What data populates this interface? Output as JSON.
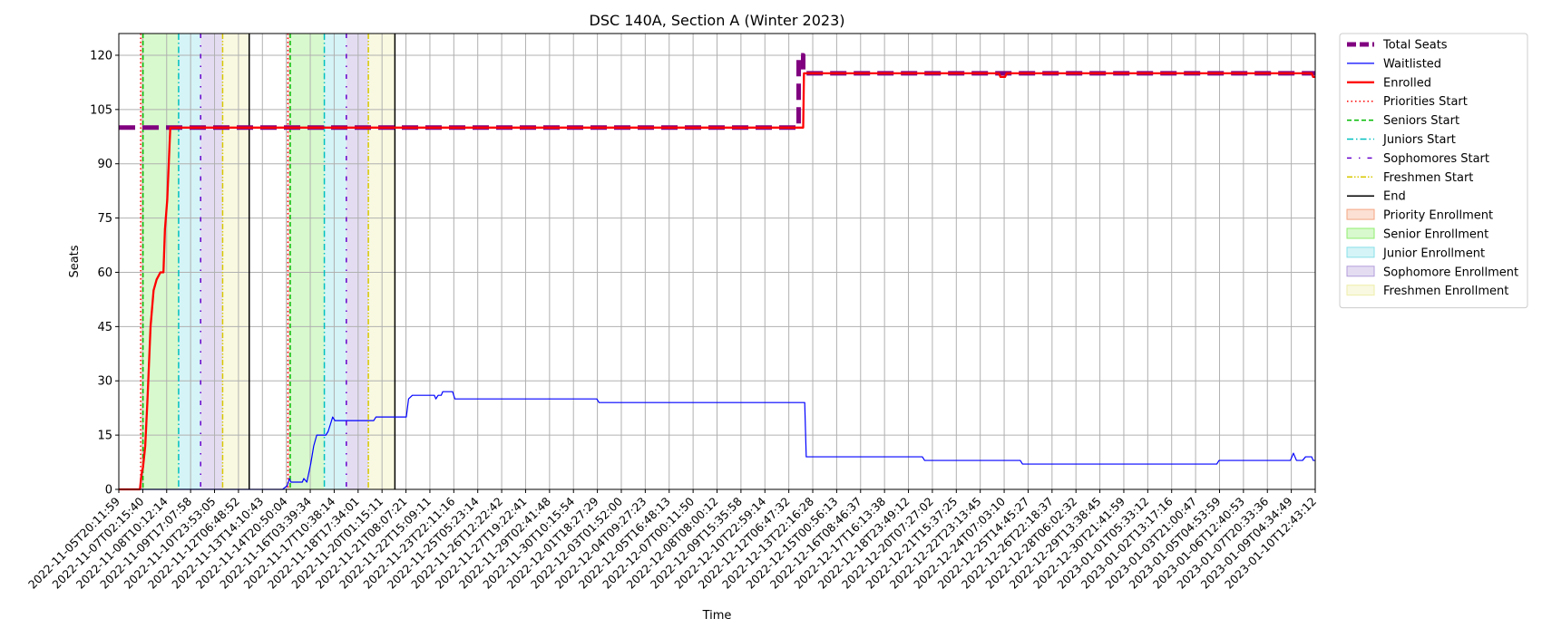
{
  "chart_data": {
    "type": "line",
    "title": "DSC 140A, Section A (Winter 2023)",
    "xlabel": "Time",
    "ylabel": "Seats",
    "xlim": [
      "2022-11-05T20:11:59",
      "2023-01-10T12:43:12"
    ],
    "ylim": [
      0,
      126
    ],
    "y_ticks": [
      0,
      15,
      30,
      45,
      60,
      75,
      90,
      105,
      120
    ],
    "x_tick_labels": [
      "2022-11-05T20:11:59",
      "2022-11-07T02:15:40",
      "2022-11-08T10:12:14",
      "2022-11-09T17:07:58",
      "2022-11-10T23:53:05",
      "2022-11-12T06:48:52",
      "2022-11-13T14:10:43",
      "2022-11-14T20:50:04",
      "2022-11-16T03:39:34",
      "2022-11-17T10:38:14",
      "2022-11-18T17:34:01",
      "2022-11-20T01:15:11",
      "2022-11-21T08:07:21",
      "2022-11-22T15:09:11",
      "2022-11-23T22:11:16",
      "2022-11-25T05:23:14",
      "2022-11-26T12:22:42",
      "2022-11-27T19:22:41",
      "2022-11-29T02:41:48",
      "2022-11-30T10:15:54",
      "2022-12-01T18:27:29",
      "2022-12-03T01:52:00",
      "2022-12-04T09:27:23",
      "2022-12-05T16:48:13",
      "2022-12-07T00:11:50",
      "2022-12-08T08:00:12",
      "2022-12-09T15:35:58",
      "2022-12-10T22:59:14",
      "2022-12-12T06:47:32",
      "2022-12-13T22:16:28",
      "2022-12-15T00:56:13",
      "2022-12-16T08:46:37",
      "2022-12-17T16:13:38",
      "2022-12-18T23:49:12",
      "2022-12-20T07:27:02",
      "2022-12-21T15:37:25",
      "2022-12-22T23:13:45",
      "2022-12-24T07:03:10",
      "2022-12-25T14:45:27",
      "2022-12-26T22:18:37",
      "2022-12-28T06:02:32",
      "2022-12-29T13:38:45",
      "2022-12-30T21:41:59",
      "2023-01-01T05:33:12",
      "2023-01-02T13:17:16",
      "2023-01-03T21:00:47",
      "2023-01-05T04:53:59",
      "2023-01-06T12:40:53",
      "2023-01-07T20:33:36",
      "2023-01-09T04:34:49",
      "2023-01-10T12:43:12"
    ],
    "grid": true,
    "legend_position": "outside-right",
    "series": [
      {
        "name": "Total Seats",
        "color": "#800080",
        "style": "dashed-thick",
        "points": [
          [
            "2022-11-05T20:11:59",
            100
          ],
          [
            "2022-12-13T04:00:00",
            100
          ],
          [
            "2022-12-13T04:00:00",
            120
          ],
          [
            "2022-12-13T10:00:00",
            120
          ],
          [
            "2022-12-13T10:00:00",
            115
          ],
          [
            "2023-01-10T12:43:12",
            115
          ]
        ]
      },
      {
        "name": "Waitlisted",
        "color": "#0000ff",
        "style": "solid-thin",
        "points": [
          [
            "2022-11-05T20:11:59",
            0
          ],
          [
            "2022-11-14T20:00:00",
            0
          ],
          [
            "2022-11-15T02:00:00",
            1
          ],
          [
            "2022-11-15T05:00:00",
            3
          ],
          [
            "2022-11-15T07:00:00",
            2
          ],
          [
            "2022-11-15T22:00:00",
            2
          ],
          [
            "2022-11-16T00:00:00",
            3
          ],
          [
            "2022-11-16T04:00:00",
            2
          ],
          [
            "2022-11-16T09:00:00",
            7
          ],
          [
            "2022-11-16T13:00:00",
            12
          ],
          [
            "2022-11-16T17:00:00",
            15
          ],
          [
            "2022-11-17T05:00:00",
            15
          ],
          [
            "2022-11-17T08:00:00",
            16
          ],
          [
            "2022-11-17T11:00:00",
            18
          ],
          [
            "2022-11-17T14:00:00",
            20
          ],
          [
            "2022-11-17T17:00:00",
            19
          ],
          [
            "2022-11-19T20:00:00",
            19
          ],
          [
            "2022-11-19T23:00:00",
            20
          ],
          [
            "2022-11-21T15:00:00",
            20
          ],
          [
            "2022-11-21T18:00:00",
            25
          ],
          [
            "2022-11-21T23:00:00",
            26
          ],
          [
            "2022-11-23T04:00:00",
            26
          ],
          [
            "2022-11-23T06:00:00",
            25
          ],
          [
            "2022-11-23T09:00:00",
            26
          ],
          [
            "2022-11-23T13:00:00",
            26
          ],
          [
            "2022-11-23T15:00:00",
            27
          ],
          [
            "2022-11-24T04:00:00",
            27
          ],
          [
            "2022-11-24T07:00:00",
            25
          ],
          [
            "2022-12-02T02:00:00",
            25
          ],
          [
            "2022-12-02T05:00:00",
            24
          ],
          [
            "2022-12-13T12:00:00",
            24
          ],
          [
            "2022-12-13T14:00:00",
            9
          ],
          [
            "2022-12-19T23:00:00",
            9
          ],
          [
            "2022-12-20T02:00:00",
            8
          ],
          [
            "2022-12-25T08:00:00",
            8
          ],
          [
            "2022-12-25T11:00:00",
            7
          ],
          [
            "2023-01-05T03:00:00",
            7
          ],
          [
            "2023-01-05T06:00:00",
            8
          ],
          [
            "2023-01-09T04:00:00",
            8
          ],
          [
            "2023-01-09T08:00:00",
            10
          ],
          [
            "2023-01-09T12:00:00",
            8
          ],
          [
            "2023-01-09T20:00:00",
            8
          ],
          [
            "2023-01-10T00:00:00",
            9
          ],
          [
            "2023-01-10T08:00:00",
            9
          ],
          [
            "2023-01-10T10:00:00",
            8
          ],
          [
            "2023-01-10T12:43:12",
            8
          ]
        ]
      },
      {
        "name": "Enrolled",
        "color": "#ff0000",
        "style": "solid-thick",
        "points": [
          [
            "2022-11-05T20:11:59",
            0
          ],
          [
            "2022-11-07T00:00:00",
            0
          ],
          [
            "2022-11-07T02:00:00",
            4
          ],
          [
            "2022-11-07T04:00:00",
            6
          ],
          [
            "2022-11-07T07:00:00",
            12
          ],
          [
            "2022-11-07T10:00:00",
            25
          ],
          [
            "2022-11-07T14:00:00",
            45
          ],
          [
            "2022-11-07T18:00:00",
            55
          ],
          [
            "2022-11-07T22:00:00",
            58
          ],
          [
            "2022-11-08T03:00:00",
            60
          ],
          [
            "2022-11-08T07:00:00",
            60
          ],
          [
            "2022-11-08T09:00:00",
            72
          ],
          [
            "2022-11-08T12:00:00",
            80
          ],
          [
            "2022-11-08T16:00:00",
            100
          ],
          [
            "2022-12-13T10:00:00",
            100
          ],
          [
            "2022-12-13T11:00:00",
            115
          ],
          [
            "2022-12-24T04:00:00",
            115
          ],
          [
            "2022-12-24T06:00:00",
            114
          ],
          [
            "2022-12-24T12:00:00",
            114
          ],
          [
            "2022-12-24T14:00:00",
            115
          ],
          [
            "2023-01-10T08:00:00",
            115
          ],
          [
            "2023-01-10T10:00:00",
            114
          ],
          [
            "2023-01-10T12:43:12",
            114
          ]
        ]
      }
    ],
    "vertical_markers": [
      {
        "name": "Priorities Start",
        "color": "#ff0000",
        "style": "dotted",
        "times": [
          "2022-11-07T01:00:00",
          "2022-11-15T03:00:00"
        ]
      },
      {
        "name": "Seniors Start",
        "color": "#00bb00",
        "style": "dashed",
        "times": [
          "2022-11-07T04:00:00",
          "2022-11-15T06:00:00"
        ]
      },
      {
        "name": "Juniors Start",
        "color": "#00bfbf",
        "style": "dashdot",
        "times": [
          "2022-11-09T03:00:00",
          "2022-11-17T03:00:00"
        ]
      },
      {
        "name": "Sophomores Start",
        "color": "#6600cc",
        "style": "loose-dashdot",
        "times": [
          "2022-11-10T08:00:00",
          "2022-11-18T08:00:00"
        ]
      },
      {
        "name": "Freshmen Start",
        "color": "#d8c800",
        "style": "dashdotdot",
        "times": [
          "2022-11-11T13:00:00",
          "2022-11-19T13:00:00"
        ]
      },
      {
        "name": "End",
        "color": "#000000",
        "style": "solid",
        "times": [
          "2022-11-13T00:00:00",
          "2022-11-21T00:00:00"
        ]
      }
    ],
    "shaded_periods": [
      {
        "name": "Priority Enrollment",
        "color": "#f4a582",
        "ranges": [
          [
            "2022-11-07T01:00:00",
            "2022-11-07T04:00:00"
          ],
          [
            "2022-11-15T03:00:00",
            "2022-11-15T06:00:00"
          ]
        ]
      },
      {
        "name": "Senior Enrollment",
        "color": "#90ee70",
        "ranges": [
          [
            "2022-11-07T04:00:00",
            "2022-11-09T03:00:00"
          ],
          [
            "2022-11-15T06:00:00",
            "2022-11-17T03:00:00"
          ]
        ]
      },
      {
        "name": "Junior Enrollment",
        "color": "#87e0e8",
        "ranges": [
          [
            "2022-11-09T03:00:00",
            "2022-11-10T08:00:00"
          ],
          [
            "2022-11-17T03:00:00",
            "2022-11-18T08:00:00"
          ]
        ]
      },
      {
        "name": "Sophomore Enrollment",
        "color": "#b39ddb",
        "ranges": [
          [
            "2022-11-10T08:00:00",
            "2022-11-11T13:00:00"
          ],
          [
            "2022-11-18T08:00:00",
            "2022-11-19T13:00:00"
          ]
        ]
      },
      {
        "name": "Freshmen Enrollment",
        "color": "#eeeeaa",
        "ranges": [
          [
            "2022-11-11T13:00:00",
            "2022-11-13T00:00:00"
          ],
          [
            "2022-11-19T13:00:00",
            "2022-11-21T00:00:00"
          ]
        ]
      }
    ]
  }
}
